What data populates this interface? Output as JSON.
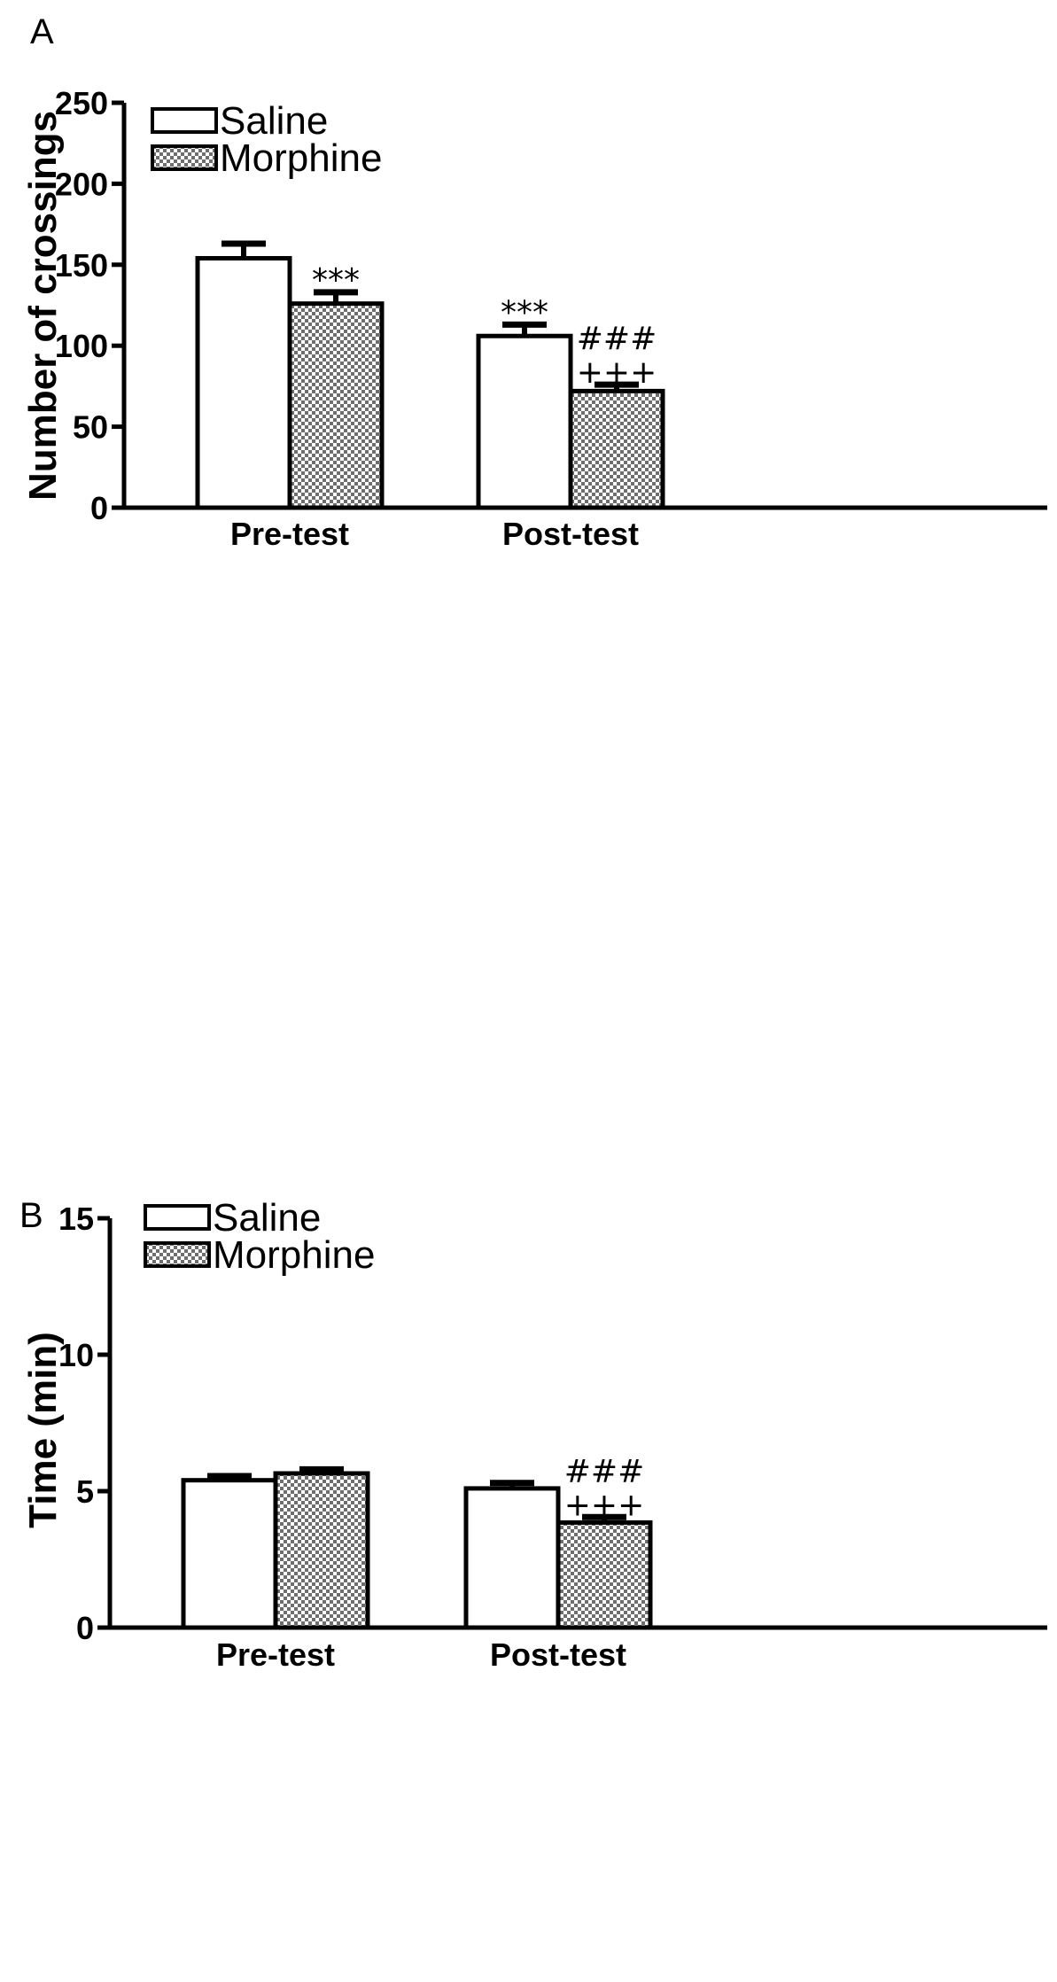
{
  "chart_data": [
    {
      "panel": "A",
      "type": "bar",
      "categories": [
        "Pre-test",
        "Post-test"
      ],
      "series": [
        {
          "name": "Saline",
          "values": [
            154,
            106
          ],
          "errors": [
            9,
            7
          ],
          "fill": "#ffffff",
          "pattern": "none"
        },
        {
          "name": "Morphine",
          "values": [
            126,
            72
          ],
          "errors": [
            7,
            4
          ],
          "fill": "#7a7a7a",
          "pattern": "checker"
        }
      ],
      "annotations": [
        {
          "series": 1,
          "category": 0,
          "lines": [
            "***"
          ]
        },
        {
          "series": 0,
          "category": 1,
          "lines": [
            "***"
          ]
        },
        {
          "series": 1,
          "category": 1,
          "lines": [
            "###",
            "+++"
          ]
        }
      ],
      "ylabel": "Number of crossings",
      "xlabel": "",
      "ylim": [
        0,
        250
      ],
      "yticks": [
        "0",
        "50",
        "100",
        "150",
        "200",
        "250"
      ],
      "legend_position": "top-left",
      "grid": false
    },
    {
      "panel": "B",
      "type": "bar",
      "categories": [
        "Pre-test",
        "Post-test"
      ],
      "series": [
        {
          "name": "Saline",
          "values": [
            5.4,
            5.1
          ],
          "errors": [
            0.15,
            0.2
          ],
          "fill": "#ffffff",
          "pattern": "none"
        },
        {
          "name": "Morphine",
          "values": [
            5.65,
            3.85
          ],
          "errors": [
            0.15,
            0.2
          ],
          "fill": "#7a7a7a",
          "pattern": "checker"
        }
      ],
      "annotations": [
        {
          "series": 1,
          "category": 1,
          "lines": [
            "###",
            "+++"
          ]
        }
      ],
      "ylabel": "Time (min)",
      "xlabel": "",
      "ylim": [
        0,
        15
      ],
      "yticks": [
        "0",
        "5",
        "10",
        "15"
      ],
      "legend_position": "top-left",
      "grid": false
    }
  ]
}
